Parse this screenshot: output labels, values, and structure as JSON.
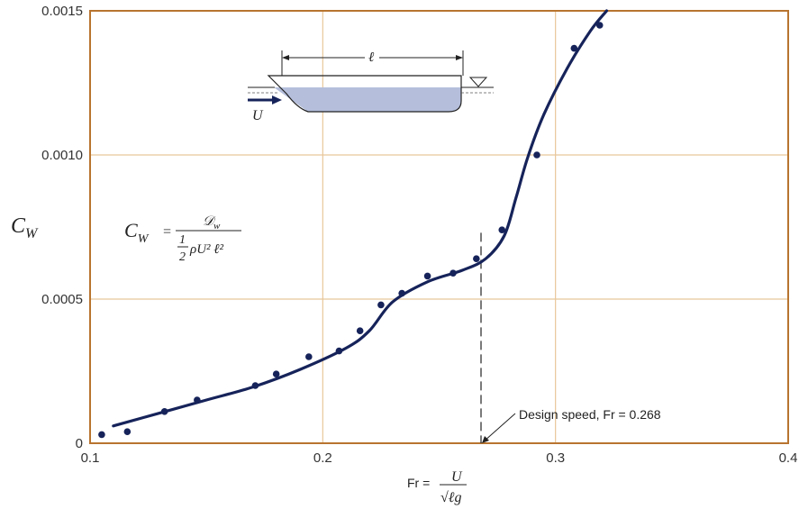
{
  "chart_data": {
    "type": "line",
    "xlim": [
      0.1,
      0.4
    ],
    "ylim": [
      0,
      0.0015
    ],
    "x_ticks": [
      "0.1",
      "0.2",
      "0.3",
      "0.4"
    ],
    "y_ticks": [
      "0",
      "0.0005",
      "0.0010",
      "0.0015"
    ],
    "grid": true,
    "series": [
      {
        "type": "scatter",
        "x": [
          0.105,
          0.116,
          0.132,
          0.146,
          0.171,
          0.18,
          0.194,
          0.207,
          0.216,
          0.225,
          0.234,
          0.245,
          0.256,
          0.266,
          0.277,
          0.292,
          0.308,
          0.319
        ],
        "y": [
          3e-05,
          4e-05,
          0.00011,
          0.00015,
          0.0002,
          0.00024,
          0.0003,
          0.00032,
          0.00039,
          0.00048,
          0.00052,
          0.00058,
          0.00059,
          0.00064,
          0.00074,
          0.001,
          0.00137,
          0.00145
        ]
      },
      {
        "type": "line",
        "x": [
          0.11,
          0.13,
          0.15,
          0.17,
          0.19,
          0.21,
          0.22,
          0.23,
          0.245,
          0.26,
          0.27,
          0.278,
          0.283,
          0.288,
          0.295,
          0.305,
          0.315,
          0.322
        ],
        "y": [
          6e-05,
          0.000105,
          0.00015,
          0.000195,
          0.000255,
          0.00033,
          0.00039,
          0.00049,
          0.00056,
          0.0006,
          0.00064,
          0.00072,
          0.00085,
          0.00099,
          0.00114,
          0.0013,
          0.00143,
          0.0015
        ]
      }
    ],
    "design_speed_x": 0.268,
    "annotation": "Design speed, Fr = 0.268",
    "ylabel_main": "C",
    "ylabel_sub": "W",
    "xlabel_prefix": "Fr =",
    "xlabel_num": "U",
    "xlabel_den": "√ℓg",
    "formula_lhs": "C",
    "formula_lhs_sub": "W",
    "formula_eq": "=",
    "formula_num": "𝒟",
    "formula_num_sub": "w",
    "formula_den_frac_num": "1",
    "formula_den_frac_den": "2",
    "formula_den_rest": "ρU² ℓ²",
    "ship_length_label": "ℓ",
    "ship_velocity_label": "U",
    "colors": {
      "frame": "#b8742f",
      "grid": "#e8c79a",
      "curve": "#16235a",
      "hull_fill": "#b5bfdc"
    }
  }
}
